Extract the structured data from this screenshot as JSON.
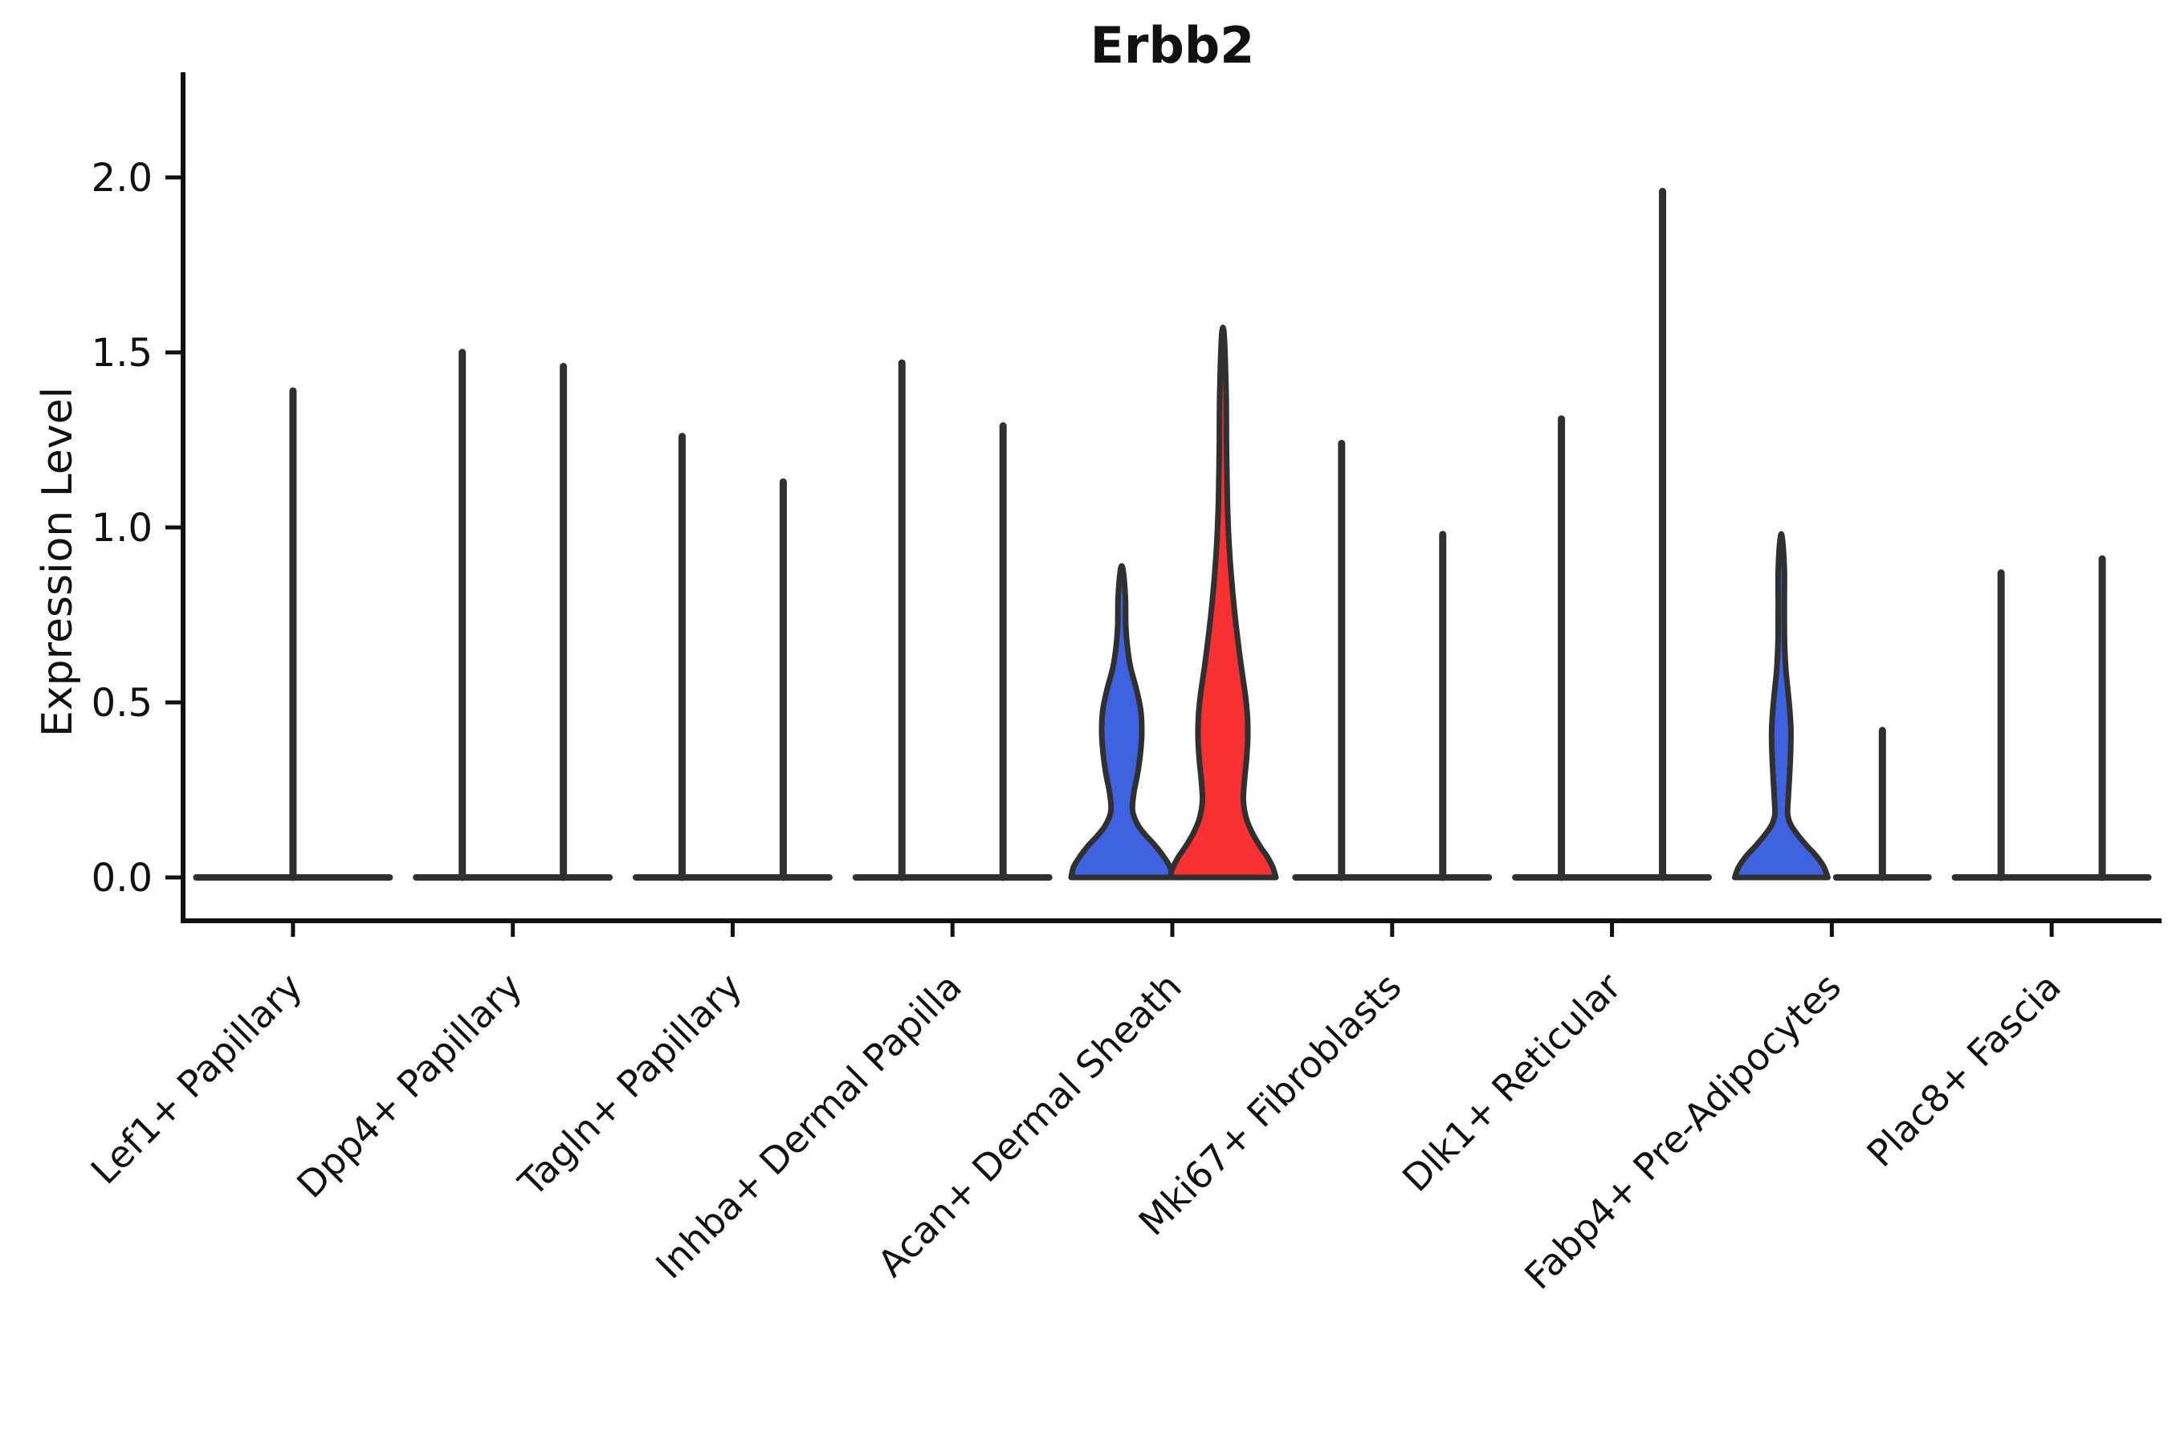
{
  "chart_data": {
    "type": "violin",
    "title": "Erbb2",
    "xlabel": "",
    "ylabel": "Expression Level",
    "ylim": [
      0,
      2.3
    ],
    "yticks": [
      0,
      0.5,
      1,
      1.5,
      2
    ],
    "ytick_labels": [
      "0.0",
      "0.5",
      "1.0",
      "1.5",
      "2.0"
    ],
    "grid": false,
    "legend_position": "none",
    "split_groups": 2,
    "colors": {
      "axis": "#111111",
      "text": "#111111",
      "violin_stroke": "#303030",
      "blue_fill": "#3F63E0",
      "red_fill": "#F73131",
      "background": "#ffffff"
    },
    "categories": [
      {
        "label": "Lef1+ Papillary",
        "base_span": [
          -0.44,
          0.44
        ],
        "violins": [
          {
            "pos": "center",
            "type": "spike",
            "tip": 1.39,
            "fill": "none"
          }
        ]
      },
      {
        "label": "Dpp4+ Papillary",
        "base_span": [
          -0.44,
          0.44
        ],
        "violins": [
          {
            "pos": "left",
            "type": "spike",
            "tip": 1.5,
            "fill": "none"
          },
          {
            "pos": "right",
            "type": "spike",
            "tip": 1.46,
            "fill": "none"
          }
        ]
      },
      {
        "label": "Tagln+ Papillary",
        "base_span": [
          -0.44,
          0.44
        ],
        "violins": [
          {
            "pos": "left",
            "type": "spike",
            "tip": 1.26,
            "fill": "none"
          },
          {
            "pos": "right",
            "type": "spike",
            "tip": 1.13,
            "fill": "none"
          }
        ]
      },
      {
        "label": "Inhba+ Dermal Papilla",
        "base_span": [
          -0.44,
          0.44
        ],
        "violins": [
          {
            "pos": "left",
            "type": "spike",
            "tip": 1.47,
            "fill": "none"
          },
          {
            "pos": "right",
            "type": "spike",
            "tip": 1.29,
            "fill": "none"
          }
        ]
      },
      {
        "label": "Acan+ Dermal Sheath",
        "base_span": null,
        "violins": [
          {
            "pos": "left",
            "type": "shape",
            "tip": 0.88,
            "fill": "blue",
            "profile": [
              [
                0,
                63
              ],
              [
                0.03,
                60
              ],
              [
                0.06,
                52
              ],
              [
                0.09,
                42
              ],
              [
                0.12,
                30
              ],
              [
                0.15,
                20
              ],
              [
                0.19,
                13.5
              ],
              [
                0.24,
                15
              ],
              [
                0.3,
                20
              ],
              [
                0.36,
                23.5
              ],
              [
                0.42,
                25
              ],
              [
                0.48,
                23.5
              ],
              [
                0.54,
                18
              ],
              [
                0.6,
                11
              ],
              [
                0.66,
                7
              ],
              [
                0.72,
                5
              ],
              [
                0.8,
                4.5
              ],
              [
                0.88,
                1.5
              ]
            ]
          },
          {
            "pos": "right",
            "type": "shape",
            "tip": 1.55,
            "fill": "red",
            "profile": [
              [
                0,
                66
              ],
              [
                0.03,
                62
              ],
              [
                0.06,
                55
              ],
              [
                0.09,
                46
              ],
              [
                0.13,
                36
              ],
              [
                0.17,
                29
              ],
              [
                0.22,
                25.5
              ],
              [
                0.28,
                27
              ],
              [
                0.34,
                29.5
              ],
              [
                0.4,
                31
              ],
              [
                0.46,
                30.5
              ],
              [
                0.52,
                28
              ],
              [
                0.6,
                23
              ],
              [
                0.68,
                18.5
              ],
              [
                0.76,
                14.5
              ],
              [
                0.86,
                10.5
              ],
              [
                0.96,
                7.5
              ],
              [
                1.08,
                5.5
              ],
              [
                1.22,
                4.5
              ],
              [
                1.38,
                4
              ],
              [
                1.55,
                1.5
              ]
            ]
          }
        ]
      },
      {
        "label": "Mki67+ Fibroblasts",
        "base_span": [
          -0.44,
          0.44
        ],
        "violins": [
          {
            "pos": "left",
            "type": "spike",
            "tip": 1.24,
            "fill": "none"
          },
          {
            "pos": "right",
            "type": "spike",
            "tip": 0.98,
            "fill": "none"
          }
        ]
      },
      {
        "label": "Dlk1+ Reticular",
        "base_span": [
          -0.44,
          0.44
        ],
        "violins": [
          {
            "pos": "left",
            "type": "spike",
            "tip": 1.31,
            "fill": "none"
          },
          {
            "pos": "right",
            "type": "spike",
            "tip": 1.96,
            "fill": "none"
          }
        ]
      },
      {
        "label": "Fabp4+ Pre-Adipocytes",
        "base_span": [
          0.02,
          0.44
        ],
        "violins": [
          {
            "pos": "left",
            "type": "shape",
            "tip": 0.97,
            "fill": "blue",
            "profile": [
              [
                0,
                58
              ],
              [
                0.03,
                53
              ],
              [
                0.06,
                44
              ],
              [
                0.09,
                32
              ],
              [
                0.12,
                21
              ],
              [
                0.15,
                12
              ],
              [
                0.18,
                8
              ],
              [
                0.22,
                8.5
              ],
              [
                0.28,
                10
              ],
              [
                0.35,
                11.5
              ],
              [
                0.42,
                12
              ],
              [
                0.48,
                10.5
              ],
              [
                0.54,
                8
              ],
              [
                0.6,
                5.5
              ],
              [
                0.68,
                4
              ],
              [
                0.78,
                3.8
              ],
              [
                0.88,
                3.8
              ],
              [
                0.97,
                1.2
              ]
            ]
          },
          {
            "pos": "right",
            "type": "spike",
            "tip": 0.42,
            "fill": "none"
          }
        ]
      },
      {
        "label": "Plac8+ Fascia",
        "base_span": [
          -0.44,
          0.44
        ],
        "violins": [
          {
            "pos": "left",
            "type": "spike",
            "tip": 0.87,
            "fill": "none"
          },
          {
            "pos": "right",
            "type": "spike",
            "tip": 0.91,
            "fill": "none"
          }
        ]
      }
    ]
  }
}
